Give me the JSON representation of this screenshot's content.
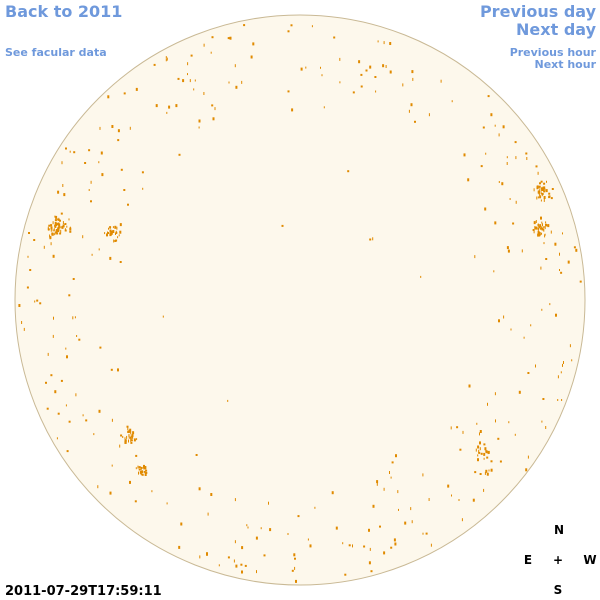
{
  "header": {
    "back_link": "Back to 2011",
    "facular_link": "See facular data",
    "previous_day": "Previous day",
    "next_day": "Next day",
    "previous_hour": "Previous hour",
    "next_hour": "Next hour"
  },
  "timestamp": "2011-07-29T17:59:11",
  "compass": {
    "north": "N",
    "east": "E",
    "center": "+",
    "west": "W",
    "south": "S"
  }
}
